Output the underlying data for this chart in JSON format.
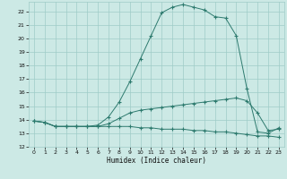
{
  "xlabel": "Humidex (Indice chaleur)",
  "bg_color": "#cce9e5",
  "grid_color": "#9fccc7",
  "line_color": "#2d7a6e",
  "xlim": [
    -0.5,
    23.5
  ],
  "ylim": [
    12.0,
    22.7
  ],
  "yticks": [
    12,
    13,
    14,
    15,
    16,
    17,
    18,
    19,
    20,
    21,
    22
  ],
  "xticks": [
    0,
    1,
    2,
    3,
    4,
    5,
    6,
    7,
    8,
    9,
    10,
    11,
    12,
    13,
    14,
    15,
    16,
    17,
    18,
    19,
    20,
    21,
    22,
    23
  ],
  "series1_x": [
    0,
    1,
    2,
    3,
    4,
    5,
    6,
    7,
    8,
    9,
    10,
    11,
    12,
    13,
    14,
    15,
    16,
    17,
    18,
    19,
    20,
    21,
    22,
    23
  ],
  "series1_y": [
    13.9,
    13.8,
    13.5,
    13.5,
    13.5,
    13.5,
    13.5,
    13.5,
    13.5,
    13.5,
    13.4,
    13.4,
    13.3,
    13.3,
    13.3,
    13.2,
    13.2,
    13.1,
    13.1,
    13.0,
    12.9,
    12.8,
    12.8,
    12.7
  ],
  "series2_x": [
    0,
    1,
    2,
    3,
    4,
    5,
    6,
    7,
    8,
    9,
    10,
    11,
    12,
    13,
    14,
    15,
    16,
    17,
    18,
    19,
    20,
    21,
    22,
    23
  ],
  "series2_y": [
    13.9,
    13.8,
    13.5,
    13.5,
    13.5,
    13.5,
    13.5,
    13.7,
    14.1,
    14.5,
    14.7,
    14.8,
    14.9,
    15.0,
    15.1,
    15.2,
    15.3,
    15.4,
    15.5,
    15.6,
    15.4,
    14.5,
    13.2,
    13.3
  ],
  "series3_x": [
    0,
    1,
    2,
    3,
    4,
    5,
    6,
    7,
    8,
    9,
    10,
    11,
    12,
    13,
    14,
    15,
    16,
    17,
    18,
    19,
    20,
    21,
    22,
    23
  ],
  "series3_y": [
    13.9,
    13.8,
    13.5,
    13.5,
    13.5,
    13.5,
    13.6,
    14.2,
    15.3,
    16.8,
    18.5,
    20.2,
    21.9,
    22.3,
    22.5,
    22.3,
    22.1,
    21.6,
    21.5,
    20.2,
    16.3,
    13.1,
    13.0,
    13.4
  ]
}
